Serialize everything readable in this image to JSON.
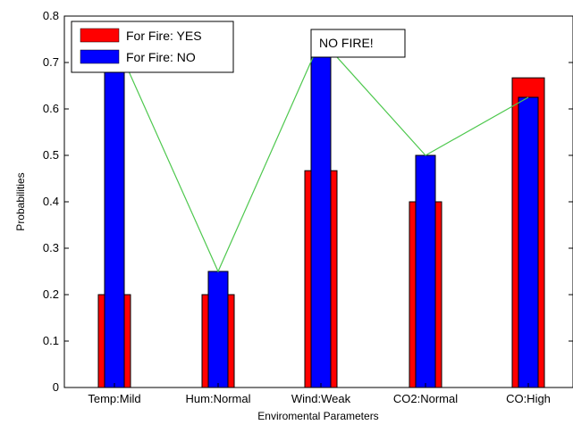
{
  "chart_data": {
    "type": "bar",
    "xlabel": "Enviromental Parameters",
    "ylabel": "Probabilities",
    "ylim": [
      0,
      0.8
    ],
    "yticks": [
      "0",
      "0.1",
      "0.2",
      "0.3",
      "0.4",
      "0.5",
      "0.6",
      "0.7",
      "0.8"
    ],
    "categories": [
      "Temp:Mild",
      "Hum:Normal",
      "Wind:Weak",
      "CO2:Normal",
      "CO:High"
    ],
    "series": [
      {
        "name": "For Fire: YES",
        "color": "#ff0000",
        "values": [
          0.2,
          0.2,
          0.467,
          0.4,
          0.667
        ]
      },
      {
        "name": "For Fire: NO",
        "color": "#0000ff",
        "values": [
          0.75,
          0.25,
          0.75,
          0.5,
          0.625
        ]
      }
    ],
    "line": {
      "color": "#4ec84e",
      "values": [
        0.75,
        0.25,
        0.75,
        0.5,
        0.625
      ]
    },
    "annotation": "NO FIRE!",
    "legend_position": "top-left",
    "grid": false
  }
}
